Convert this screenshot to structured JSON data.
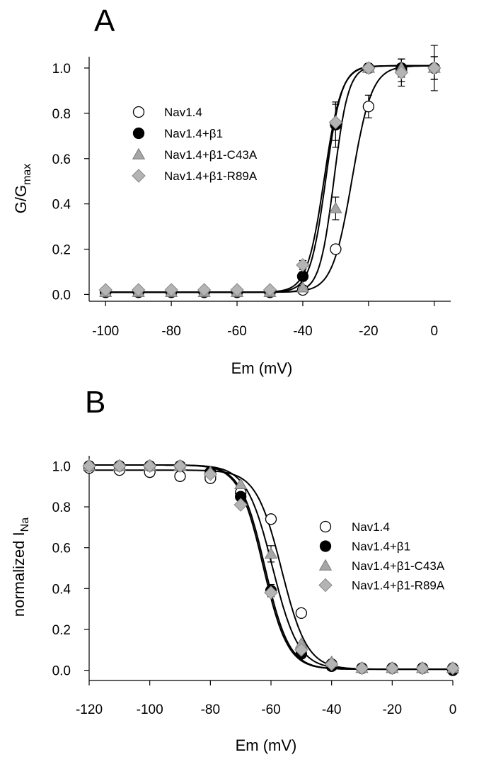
{
  "figure": {
    "panels": [
      {
        "label": "A",
        "ylabel_main": "G/G",
        "ylabel_sub": "max",
        "xlabel": "Em (mV)"
      },
      {
        "label": "B",
        "ylabel_main": "normalized I",
        "ylabel_sub": "Na",
        "xlabel": "Em (mV)"
      }
    ]
  },
  "colors": {
    "Nav1.4": "#ffffff",
    "Nav1.4+β1": "#000000",
    "Nav1.4+β1-C43A": "#a6a6a6",
    "Nav1.4+β1-R89A": "#b4b4b4"
  },
  "chart_data": [
    {
      "type": "scatter",
      "title": "A",
      "xlabel": "Em (mV)",
      "ylabel": "G/Gmax",
      "xlim": [
        -105,
        5
      ],
      "ylim": [
        -0.03,
        1.05
      ],
      "xticks": [
        -100,
        -80,
        -60,
        -40,
        -20,
        0
      ],
      "yticks": [
        0.0,
        0.2,
        0.4,
        0.6,
        0.8,
        1.0
      ],
      "legend": "upper-left",
      "grid": false,
      "fit": "Boltzmann sigmoid curve per series",
      "series": [
        {
          "name": "Nav1.4",
          "marker": "circle-open",
          "x": [
            -100,
            -90,
            -80,
            -70,
            -60,
            -50,
            -40,
            -30,
            -20,
            -10,
            0
          ],
          "y": [
            0.01,
            0.01,
            0.01,
            0.01,
            0.01,
            0.01,
            0.02,
            0.2,
            0.83,
            0.99,
            1.0
          ],
          "err": [
            0,
            0,
            0,
            0,
            0,
            0,
            0.01,
            0.02,
            0.05,
            0.05,
            0.05
          ],
          "fit_params": {
            "v_half": -25,
            "k": 3.0
          }
        },
        {
          "name": "Nav1.4+β1",
          "marker": "circle-filled",
          "x": [
            -100,
            -90,
            -80,
            -70,
            -60,
            -50,
            -40,
            -30,
            -20,
            -10,
            0
          ],
          "y": [
            0.01,
            0.01,
            0.01,
            0.01,
            0.01,
            0.01,
            0.08,
            0.75,
            1.0,
            1.0,
            1.0
          ],
          "err": [
            0,
            0,
            0,
            0,
            0,
            0,
            0.02,
            0.1,
            0.02,
            0.04,
            0.1
          ],
          "fit_params": {
            "v_half": -33,
            "k": 2.4
          }
        },
        {
          "name": "Nav1.4+β1-C43A",
          "marker": "triangle",
          "x": [
            -100,
            -90,
            -80,
            -70,
            -60,
            -50,
            -40,
            -30,
            -20,
            -10,
            0
          ],
          "y": [
            0.01,
            0.01,
            0.01,
            0.01,
            0.01,
            0.01,
            0.03,
            0.38,
            1.0,
            1.0,
            1.0
          ],
          "err": [
            0,
            0,
            0,
            0,
            0,
            0,
            0.01,
            0.05,
            0.02,
            0.04,
            0.05
          ],
          "fit_params": {
            "v_half": -30.5,
            "k": 2.2
          }
        },
        {
          "name": "Nav1.4+β1-R89A",
          "marker": "diamond",
          "x": [
            -100,
            -90,
            -80,
            -70,
            -60,
            -50,
            -40,
            -30,
            -20,
            -10,
            0
          ],
          "y": [
            0.02,
            0.02,
            0.02,
            0.02,
            0.02,
            0.02,
            0.13,
            0.76,
            1.0,
            0.98,
            1.0
          ],
          "err": [
            0,
            0,
            0,
            0,
            0,
            0,
            0.02,
            0.08,
            0.02,
            0.06,
            0.05
          ],
          "fit_params": {
            "v_half": -33.5,
            "k": 2.6
          }
        }
      ]
    },
    {
      "type": "scatter",
      "title": "B",
      "xlabel": "Em (mV)",
      "ylabel": "normalized INa",
      "xlim": [
        -120,
        0
      ],
      "ylim": [
        -0.05,
        1.05
      ],
      "xticks": [
        -120,
        -100,
        -80,
        -60,
        -40,
        -20,
        0
      ],
      "yticks": [
        0.0,
        0.2,
        0.4,
        0.6,
        0.8,
        1.0
      ],
      "legend": "right",
      "grid": false,
      "fit": "Boltzmann sigmoid curve per series",
      "series": [
        {
          "name": "Nav1.4",
          "marker": "circle-open",
          "x": [
            -120,
            -110,
            -100,
            -90,
            -80,
            -70,
            -60,
            -50,
            -40,
            -30,
            -20,
            -10,
            0
          ],
          "y": [
            0.99,
            0.98,
            0.97,
            0.95,
            0.94,
            0.87,
            0.74,
            0.28,
            0.03,
            0.01,
            0.01,
            0.01,
            0.01
          ],
          "err": [
            0,
            0,
            0,
            0,
            0,
            0,
            0,
            0,
            0,
            0,
            0,
            0,
            0
          ],
          "fit_params": {
            "v_half": -56.5,
            "k": 4.2,
            "top": 0.975
          }
        },
        {
          "name": "Nav1.4+β1",
          "marker": "circle-filled",
          "x": [
            -120,
            -110,
            -100,
            -90,
            -80,
            -70,
            -60,
            -50,
            -40,
            -30,
            -20,
            -10,
            0
          ],
          "y": [
            1.0,
            1.0,
            1.0,
            1.0,
            0.97,
            0.85,
            0.39,
            0.08,
            0.02,
            0.01,
            0.01,
            0.01,
            0.0
          ],
          "err": [
            0,
            0,
            0,
            0,
            0,
            0,
            0.03,
            0,
            0,
            0,
            0,
            0,
            0
          ],
          "fit_params": {
            "v_half": -62,
            "k": 4.0,
            "top": 1.0
          }
        },
        {
          "name": "Nav1.4+β1-C43A",
          "marker": "triangle",
          "x": [
            -120,
            -110,
            -100,
            -90,
            -80,
            -70,
            -60,
            -50,
            -40,
            -30,
            -20,
            -10,
            0
          ],
          "y": [
            1.0,
            1.0,
            1.0,
            1.0,
            0.97,
            0.91,
            0.57,
            0.13,
            0.04,
            0.01,
            0.01,
            0.01,
            0.01
          ],
          "err": [
            0,
            0,
            0,
            0,
            0,
            0,
            0.04,
            0,
            0,
            0,
            0,
            0,
            0
          ],
          "fit_params": {
            "v_half": -59.5,
            "k": 4.3,
            "top": 1.0
          }
        },
        {
          "name": "Nav1.4+β1-R89A",
          "marker": "diamond",
          "x": [
            -120,
            -110,
            -100,
            -90,
            -80,
            -70,
            -60,
            -50,
            -40,
            -30,
            -20,
            -10,
            0
          ],
          "y": [
            1.0,
            1.0,
            1.0,
            1.0,
            0.96,
            0.81,
            0.38,
            0.1,
            0.03,
            0.01,
            0.01,
            0.01,
            0.01
          ],
          "err": [
            0,
            0,
            0,
            0,
            0,
            0,
            0.02,
            0,
            0,
            0,
            0,
            0,
            0
          ],
          "fit_params": {
            "v_half": -62.5,
            "k": 4.0,
            "top": 1.0
          }
        }
      ]
    }
  ]
}
